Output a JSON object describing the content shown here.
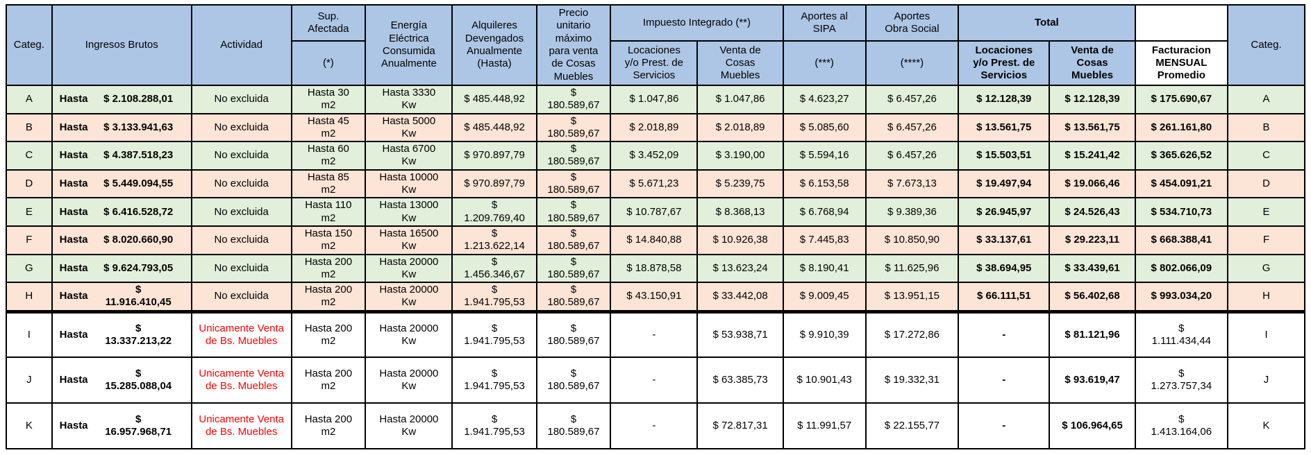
{
  "colors": {
    "header_bg": "#aec6e5",
    "row_green": "#e2efda",
    "row_pink": "#fce4d6",
    "row_white": "#ffffff",
    "red_text": "#ff0000",
    "border": "#000000"
  },
  "labels": {
    "hasta": "Hasta"
  },
  "header": {
    "categ_left": "Categ.",
    "ingresos": "Ingresos Brutos",
    "actividad": "Actividad",
    "sup_top": "Sup.\nAfectada",
    "sup_bottom": "(*)",
    "energia": "Energía\nEléctrica\nConsumida\nAnualmente",
    "alquileres": "Alquileres\nDevengados\nAnualmente\n(Hasta)",
    "precio": "Precio\nunitario\nmáximo\npara venta\nde Cosas\nMuebles",
    "impuesto": "Impuesto Integrado (**)",
    "imp_loc": "Locaciones\ny/o Prest. de\nServicios",
    "imp_venta": "Venta de\nCosas\nMuebles",
    "sipa_top": "Aportes al\nSIPA",
    "sipa_bottom": "(***)",
    "obra_top": "Aportes\nObra Social",
    "obra_bottom": "(****)",
    "total": "Total",
    "total_loc": "Locaciones\ny/o Prest. de\nServicios",
    "total_venta": "Venta de\nCosas\nMuebles",
    "fact": "Facturacion\nMENSUAL\nPromedio",
    "categ_right": "Categ."
  },
  "rows": [
    {
      "categ": "A",
      "ingresos": "$ 2.108.288,01",
      "actividad": "No excluida",
      "actividad_red": false,
      "sup": "Hasta 30\nm2",
      "energia": "Hasta 3330\nKw",
      "alquileres": "$ 485.448,92",
      "precio": "$\n180.589,67",
      "imp_loc": "$ 1.047,86",
      "imp_venta": "$ 1.047,86",
      "sipa": "$ 4.623,27",
      "obra": "$ 6.457,26",
      "total_loc": "$ 12.128,39",
      "total_venta": "$ 12.128,39",
      "fact": "$ 175.690,67",
      "fact_bold": true,
      "bg": "green"
    },
    {
      "categ": "B",
      "ingresos": "$ 3.133.941,63",
      "actividad": "No excluida",
      "actividad_red": false,
      "sup": "Hasta 45\nm2",
      "energia": "Hasta 5000\nKw",
      "alquileres": "$ 485.448,92",
      "precio": "$\n180.589,67",
      "imp_loc": "$ 2.018,89",
      "imp_venta": "$ 2.018,89",
      "sipa": "$ 5.085,60",
      "obra": "$ 6.457,26",
      "total_loc": "$ 13.561,75",
      "total_venta": "$ 13.561,75",
      "fact": "$ 261.161,80",
      "fact_bold": true,
      "bg": "pink"
    },
    {
      "categ": "C",
      "ingresos": "$ 4.387.518,23",
      "actividad": "No excluida",
      "actividad_red": false,
      "sup": "Hasta 60\nm2",
      "energia": "Hasta 6700\nKw",
      "alquileres": "$ 970.897,79",
      "precio": "$\n180.589,67",
      "imp_loc": "$ 3.452,09",
      "imp_venta": "$ 3.190,00",
      "sipa": "$ 5.594,16",
      "obra": "$ 6.457,26",
      "total_loc": "$ 15.503,51",
      "total_venta": "$ 15.241,42",
      "fact": "$ 365.626,52",
      "fact_bold": true,
      "bg": "green"
    },
    {
      "categ": "D",
      "ingresos": "$ 5.449.094,55",
      "actividad": "No excluida",
      "actividad_red": false,
      "sup": "Hasta 85\nm2",
      "energia": "Hasta 10000\nKw",
      "alquileres": "$ 970.897,79",
      "precio": "$\n180.589,67",
      "imp_loc": "$ 5.671,23",
      "imp_venta": "$ 5.239,75",
      "sipa": "$ 6.153,58",
      "obra": "$ 7.673,13",
      "total_loc": "$ 19.497,94",
      "total_venta": "$ 19.066,46",
      "fact": "$ 454.091,21",
      "fact_bold": true,
      "bg": "pink"
    },
    {
      "categ": "E",
      "ingresos": "$ 6.416.528,72",
      "actividad": "No excluida",
      "actividad_red": false,
      "sup": "Hasta 110\nm2",
      "energia": "Hasta 13000\nKw",
      "alquileres": "$\n1.209.769,40",
      "precio": "$\n180.589,67",
      "imp_loc": "$ 10.787,67",
      "imp_venta": "$ 8.368,13",
      "sipa": "$ 6.768,94",
      "obra": "$ 9.389,36",
      "total_loc": "$ 26.945,97",
      "total_venta": "$ 24.526,43",
      "fact": "$ 534.710,73",
      "fact_bold": true,
      "bg": "green"
    },
    {
      "categ": "F",
      "ingresos": "$ 8.020.660,90",
      "actividad": "No excluida",
      "actividad_red": false,
      "sup": "Hasta 150\nm2",
      "energia": "Hasta 16500\nKw",
      "alquileres": "$\n1.213.622,14",
      "precio": "$\n180.589,67",
      "imp_loc": "$ 14.840,88",
      "imp_venta": "$ 10.926,38",
      "sipa": "$ 7.445,83",
      "obra": "$ 10.850,90",
      "total_loc": "$ 33.137,61",
      "total_venta": "$ 29.223,11",
      "fact": "$ 668.388,41",
      "fact_bold": true,
      "bg": "pink"
    },
    {
      "categ": "G",
      "ingresos": "$ 9.624.793,05",
      "actividad": "No excluida",
      "actividad_red": false,
      "sup": "Hasta 200\nm2",
      "energia": "Hasta 20000\nKw",
      "alquileres": "$\n1.456.346,67",
      "precio": "$\n180.589,67",
      "imp_loc": "$ 18.878,58",
      "imp_venta": "$ 13.623,24",
      "sipa": "$ 8.190,41",
      "obra": "$ 11.625,96",
      "total_loc": "$ 38.694,95",
      "total_venta": "$ 33.439,61",
      "fact": "$ 802.066,09",
      "fact_bold": true,
      "bg": "green"
    },
    {
      "categ": "H",
      "ingresos": "$\n11.916.410,45",
      "actividad": "No excluida",
      "actividad_red": false,
      "sup": "Hasta 200\nm2",
      "energia": "Hasta 20000\nKw",
      "alquileres": "$\n1.941.795,53",
      "precio": "$\n180.589,67",
      "imp_loc": "$ 43.150,91",
      "imp_venta": "$ 33.442,08",
      "sipa": "$ 9.009,45",
      "obra": "$ 13.951,15",
      "total_loc": "$ 66.111,51",
      "total_venta": "$ 56.402,68",
      "fact": "$ 993.034,20",
      "fact_bold": true,
      "bg": "pink"
    },
    {
      "categ": "I",
      "ingresos": "$\n13.337.213,22",
      "actividad": "Unicamente Venta de Bs. Muebles",
      "actividad_red": true,
      "sup": "Hasta 200\nm2",
      "energia": "Hasta 20000\nKw",
      "alquileres": "$\n1.941.795,53",
      "precio": "$\n180.589,67",
      "imp_loc": "-",
      "imp_venta": "$ 53.938,71",
      "sipa": "$ 9.910,39",
      "obra": "$ 17.272,86",
      "total_loc": "-",
      "total_venta": "$ 81.121,96",
      "fact": "$\n1.111.434,44",
      "fact_bold": false,
      "bg": "white"
    },
    {
      "categ": "J",
      "ingresos": "$\n15.285.088,04",
      "actividad": "Unicamente Venta de Bs. Muebles",
      "actividad_red": true,
      "sup": "Hasta 200\nm2",
      "energia": "Hasta 20000\nKw",
      "alquileres": "$\n1.941.795,53",
      "precio": "$\n180.589,67",
      "imp_loc": "-",
      "imp_venta": "$ 63.385,73",
      "sipa": "$ 10.901,43",
      "obra": "$ 19.332,31",
      "total_loc": "-",
      "total_venta": "$ 93.619,47",
      "fact": "$\n1.273.757,34",
      "fact_bold": false,
      "bg": "white"
    },
    {
      "categ": "K",
      "ingresos": "$\n16.957.968,71",
      "actividad": "Unicamente Venta de Bs. Muebles",
      "actividad_red": true,
      "sup": "Hasta 200\nm2",
      "energia": "Hasta 20000\nKw",
      "alquileres": "$\n1.941.795,53",
      "precio": "$\n180.589,67",
      "imp_loc": "-",
      "imp_venta": "$ 72.817,31",
      "sipa": "$ 11.991,57",
      "obra": "$ 22.155,77",
      "total_loc": "-",
      "total_venta": "$ 106.964,65",
      "fact": "$\n1.413.164,06",
      "fact_bold": false,
      "bg": "white"
    }
  ]
}
